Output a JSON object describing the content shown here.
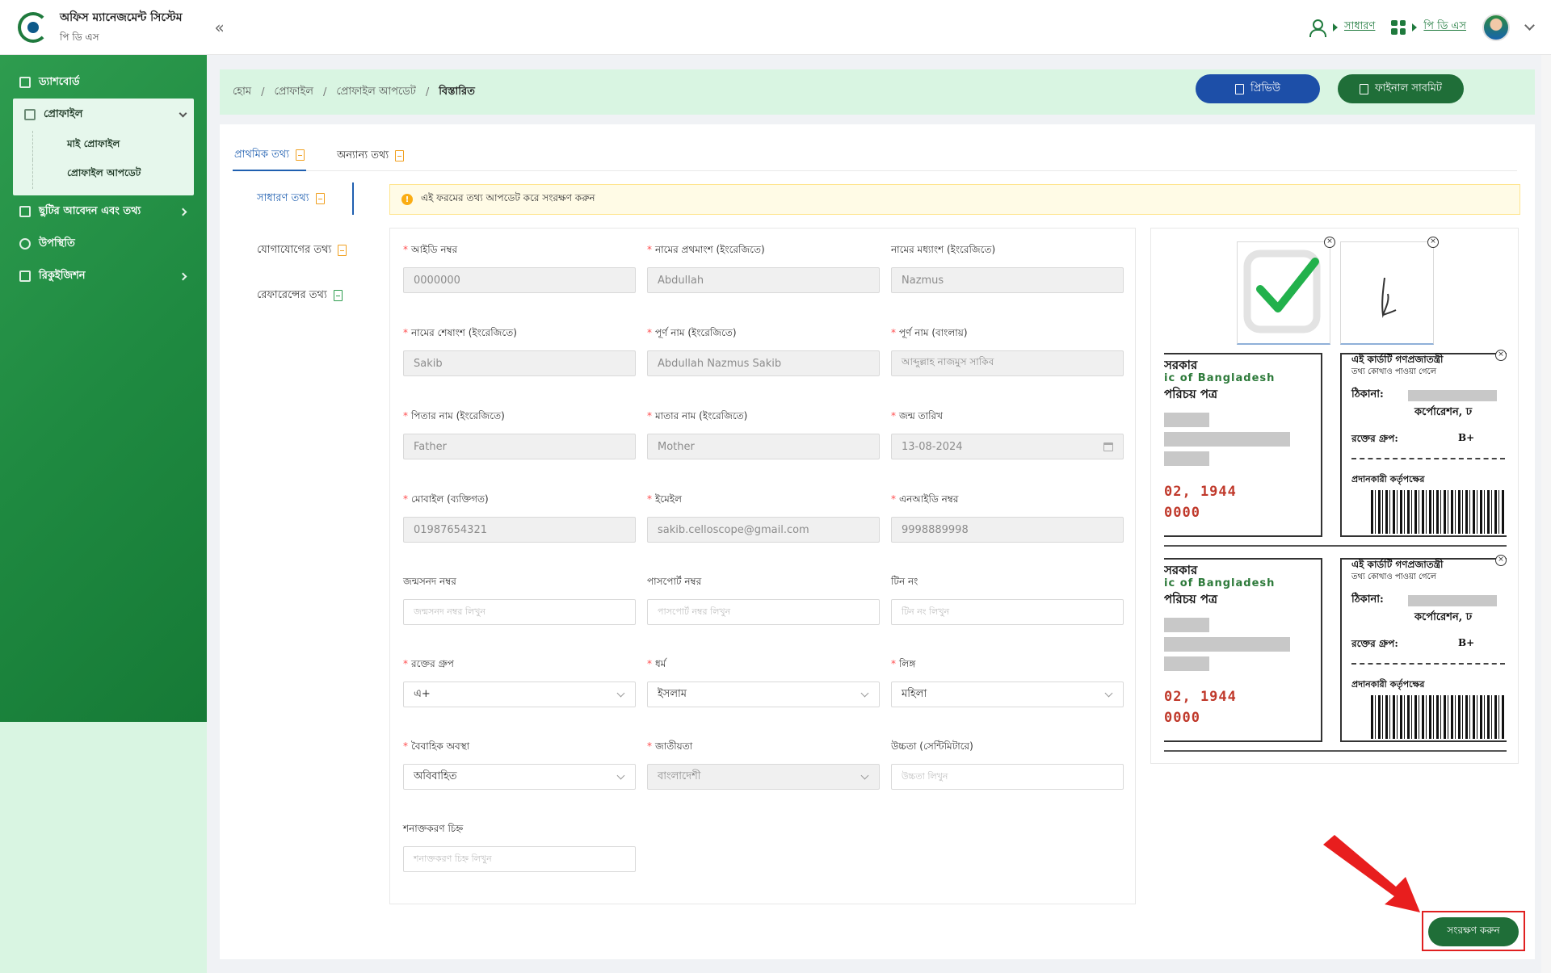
{
  "header": {
    "app_title": "অফিস ম্যানেজমেন্ট সিস্টেম",
    "app_subtitle": "পি ডি এস",
    "role_label": "সাধারণ",
    "module_label": "পি ডি এস"
  },
  "sidebar": {
    "items": [
      {
        "label": "ড্যাশবোর্ড"
      },
      {
        "label": "প্রোফাইল",
        "children": [
          {
            "label": "মাই প্রোফাইল"
          },
          {
            "label": "প্রোফাইল আপডেট"
          }
        ]
      },
      {
        "label": "ছুটির আবেদন এবং তথ্য"
      },
      {
        "label": "উপস্থিতি"
      },
      {
        "label": "রিকুইজিশন"
      }
    ]
  },
  "breadcrumb": {
    "items": [
      "হোম",
      "প্রোফাইল",
      "প্রোফাইল আপডেট",
      "বিস্তারিত"
    ],
    "separator": "/"
  },
  "actions": {
    "preview_label": "প্রিভিউ",
    "final_submit_label": "ফাইনাল সাবমিট"
  },
  "tabs": [
    {
      "label": "প্রাথমিক তথ্য",
      "active": true
    },
    {
      "label": "অন্যান্য তথ্য",
      "active": false
    }
  ],
  "section_tabs": [
    {
      "label": "সাধারণ তথ্য",
      "active": true
    },
    {
      "label": "যোগাযোগের তথ্য",
      "active": false
    },
    {
      "label": "রেফারেন্সের তথ্য",
      "active": false
    }
  ],
  "notice": {
    "text": "এই ফরমের তথ্য আপডেট করে সংরক্ষণ করুন",
    "icon": "!"
  },
  "form": {
    "id_number": {
      "label": "আইডি নম্বর",
      "value": "0000000"
    },
    "first_name_en": {
      "label": "নামের প্রথমাংশ (ইংরেজিতে)",
      "value": "Abdullah"
    },
    "middle_name_en": {
      "label": "নামের মধ্যাংশ (ইংরেজিতে)",
      "value": "Nazmus"
    },
    "last_name_en": {
      "label": "নামের শেষাংশ (ইংরেজিতে)",
      "value": "Sakib"
    },
    "full_name_en": {
      "label": "পূর্ণ নাম (ইংরেজিতে)",
      "value": "Abdullah Nazmus Sakib"
    },
    "full_name_bn": {
      "label": "পূর্ণ নাম (বাংলায়)",
      "value": "আব্দুল্লাহ নাজমুস সাকিব"
    },
    "father_name": {
      "label": "পিতার নাম (ইংরেজিতে)",
      "value": "Father"
    },
    "mother_name": {
      "label": "মাতার নাম (ইংরেজিতে)",
      "value": "Mother"
    },
    "dob": {
      "label": "জন্ম তারিখ",
      "value": "13-08-2024"
    },
    "mobile": {
      "label": "মোবাইল (ব্যক্তিগত)",
      "value": "01987654321"
    },
    "email": {
      "label": "ইমেইল",
      "value": "sakib.celloscope@gmail.com"
    },
    "nid": {
      "label": "এনআইডি নম্বর",
      "value": "9998889998"
    },
    "birth_cert": {
      "label": "জন্মসনদ নম্বর",
      "placeholder": "জন্মসনদ নম্বর লিখুন"
    },
    "passport": {
      "label": "পাসপোর্ট নম্বর",
      "placeholder": "পাসপোর্ট নম্বর লিখুন"
    },
    "tin": {
      "label": "টিন নং",
      "placeholder": "টিন নং লিখুন"
    },
    "blood_group": {
      "label": "রক্তের গ্রুপ",
      "value": "এ+"
    },
    "religion": {
      "label": "ধর্ম",
      "value": "ইসলাম"
    },
    "gender": {
      "label": "লিঙ্গ",
      "value": "মহিলা"
    },
    "marital_status": {
      "label": "বৈবাহিক অবস্থা",
      "value": "অবিবাহিত"
    },
    "nationality": {
      "label": "জাতীয়তা",
      "value": "বাংলাদেশী"
    },
    "height": {
      "label": "উচ্চতা (সেন্টিমিটারে)",
      "placeholder": "উচ্চতা লিখুন"
    },
    "id_mark": {
      "label": "শনাক্তকরণ চিহ্ন",
      "placeholder": "শনাক্তকরণ চিহ্ন লিখুন"
    }
  },
  "id_card": {
    "front_line1": "সরকার",
    "front_line2": "ic of Bangladesh",
    "front_line3": "পরিচয় পত্র",
    "front_date": "02, 1944",
    "front_num": "0000",
    "back_line1": "এই কার্ডটি গণপ্রজাতন্ত্রী",
    "back_line2": "তথ্য কোথাও পাওয়া গেলে",
    "back_addr_label": "ঠিকানা:",
    "back_addr_value": "কর্পোরেশন, ঢ",
    "back_blood_label": "রক্তের গ্রুপ:",
    "back_blood_value": "B+",
    "back_authority": "প্রদানকারী কর্তৃপক্ষের"
  },
  "save_label": "সংরক্ষণ করুন",
  "colors": {
    "brand_green": "#1f6e38",
    "primary_blue": "#1d4fa8",
    "sidebar_green": "#2e9c4f",
    "highlight_red": "#e02020"
  }
}
